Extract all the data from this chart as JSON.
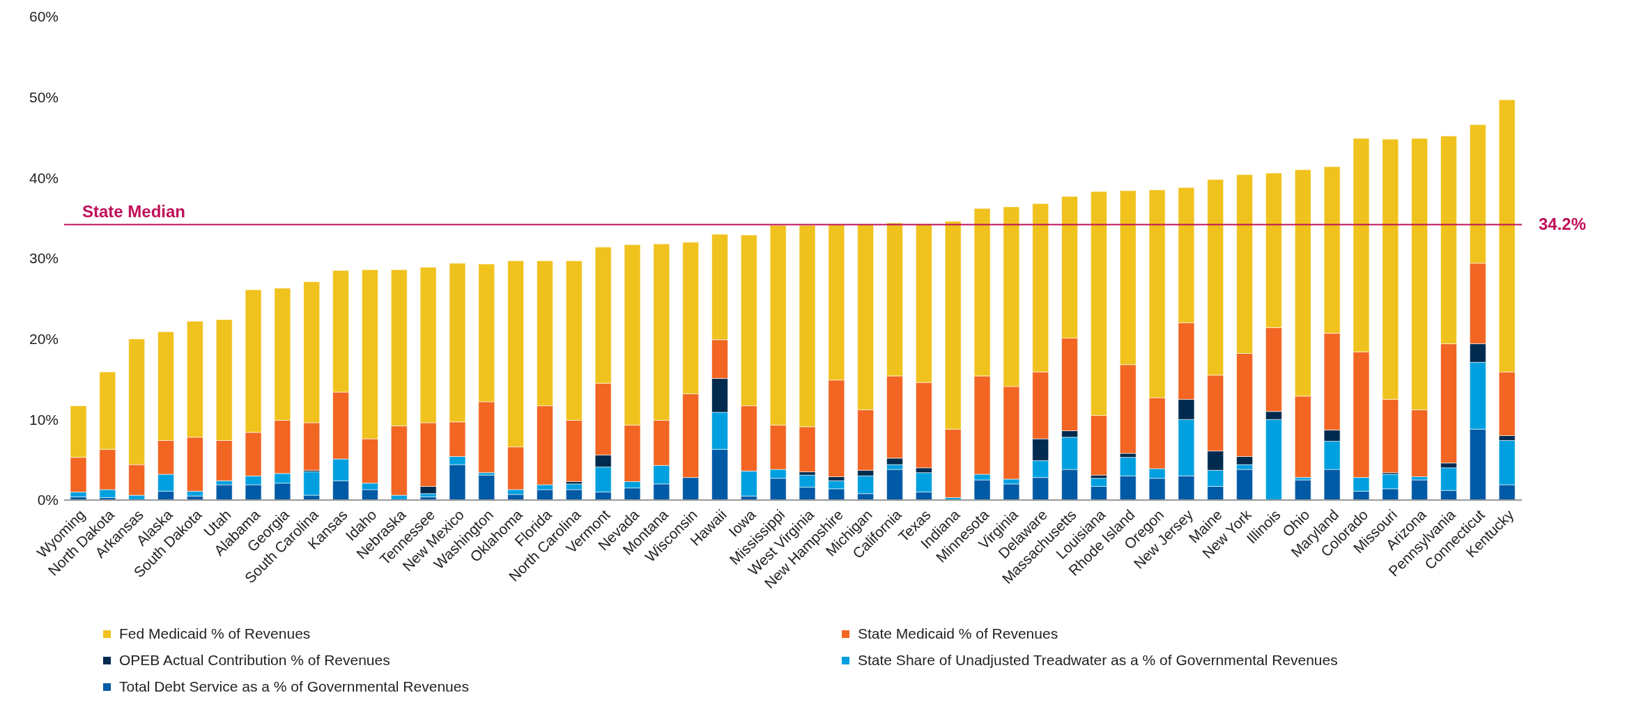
{
  "chart_data": {
    "type": "bar",
    "stacked": true,
    "legend": "bottom",
    "categories": [
      "Wyoming",
      "North Dakota",
      "Arkansas",
      "Alaska",
      "South Dakota",
      "Utah",
      "Alabama",
      "Georgia",
      "South Carolina",
      "Kansas",
      "Idaho",
      "Nebraska",
      "Tennessee",
      "New Mexico",
      "Washington",
      "Oklahoma",
      "Florida",
      "North Carolina",
      "Vermont",
      "Nevada",
      "Montana",
      "Wisconsin",
      "Hawaii",
      "Iowa",
      "Mississippi",
      "West Virginia",
      "New Hampshire",
      "Michigan",
      "California",
      "Texas",
      "Indiana",
      "Minnesota",
      "Virginia",
      "Delaware",
      "Massachusetts",
      "Louisiana",
      "Rhode Island",
      "Oregon",
      "New Jersey",
      "Maine",
      "New York",
      "Illinois",
      "Ohio",
      "Maryland",
      "Colorado",
      "Missouri",
      "Arizona",
      "Pennsylvania",
      "Connecticut",
      "Kentucky"
    ],
    "series": [
      {
        "name": "Total Debt Service as a % of Governmental Revenues",
        "color": "#005aa5",
        "values": [
          0.4,
          0.3,
          0,
          1.1,
          0.5,
          1.9,
          1.9,
          2.1,
          0.6,
          2.4,
          1.3,
          0,
          0.4,
          4.4,
          3.1,
          0.7,
          1.3,
          1.3,
          1.0,
          1.5,
          2.0,
          2.8,
          6.3,
          0.5,
          2.7,
          1.6,
          1.4,
          0.8,
          3.8,
          1.0,
          0,
          2.5,
          2.0,
          2.8,
          3.8,
          1.7,
          3.0,
          2.7,
          3.0,
          1.7,
          3.8,
          0,
          2.5,
          3.8,
          1.1,
          1.4,
          2.5,
          1.2,
          8.8,
          1.9
        ]
      },
      {
        "name": "State Share of Unadjusted Treadwater as a % of Governmental Revenues",
        "color": "#00a0e0",
        "values": [
          0.6,
          1.0,
          0.6,
          2.1,
          0.6,
          0.5,
          1.1,
          1.2,
          2.9,
          2.7,
          0.8,
          0.6,
          0.4,
          1.0,
          0.3,
          0.6,
          0.6,
          0.7,
          3.1,
          0.8,
          2.3,
          0,
          4.6,
          3.1,
          1.1,
          1.5,
          1.0,
          2.2,
          0.6,
          2.4,
          0.3,
          0.7,
          0.6,
          2.1,
          4.0,
          1.0,
          2.3,
          1.2,
          7.0,
          2.0,
          0.6,
          10.0,
          0.3,
          3.5,
          1.7,
          1.8,
          0.4,
          2.8,
          8.3,
          5.5
        ]
      },
      {
        "name": "OPEB Actual Contribution % of Revenues",
        "color": "#002b4f",
        "values": [
          0,
          0,
          0,
          0,
          0,
          0,
          0,
          0,
          0.2,
          0,
          0,
          0,
          0.9,
          0,
          0,
          0,
          0,
          0.3,
          1.5,
          0,
          0,
          0,
          4.2,
          0,
          0,
          0.4,
          0.5,
          0.7,
          0.8,
          0.6,
          0,
          0,
          0,
          2.7,
          0.8,
          0.4,
          0.5,
          0,
          2.5,
          2.4,
          1.0,
          1.0,
          0,
          1.4,
          0,
          0.2,
          0,
          0.6,
          2.3,
          0.6
        ]
      },
      {
        "name": "State Medicaid % of Revenues",
        "color": "#f26522",
        "values": [
          4.3,
          5.0,
          3.8,
          4.2,
          6.7,
          5.0,
          5.4,
          6.6,
          5.9,
          8.3,
          5.5,
          8.6,
          7.9,
          4.3,
          8.8,
          5.3,
          9.8,
          7.6,
          8.9,
          7.0,
          5.6,
          10.4,
          4.8,
          8.1,
          5.5,
          5.6,
          12.0,
          7.5,
          10.2,
          10.6,
          8.5,
          12.2,
          11.5,
          8.3,
          11.5,
          7.4,
          11.0,
          8.8,
          9.5,
          9.4,
          12.8,
          10.4,
          10.1,
          12.0,
          15.6,
          9.1,
          8.3,
          14.8,
          10.0,
          7.9
        ]
      },
      {
        "name": "Fed Medicaid % of Revenues",
        "color": "#f0c21e",
        "values": [
          6.4,
          9.6,
          15.6,
          13.5,
          14.4,
          15.0,
          17.7,
          16.4,
          17.5,
          15.1,
          21.0,
          19.4,
          19.3,
          19.7,
          17.1,
          23.1,
          18.0,
          19.8,
          16.9,
          22.4,
          21.9,
          18.8,
          13.1,
          21.2,
          24.8,
          25.0,
          19.3,
          23.0,
          19.0,
          19.7,
          25.8,
          20.8,
          22.3,
          20.9,
          17.6,
          27.8,
          21.6,
          25.8,
          16.8,
          24.3,
          22.2,
          19.2,
          28.1,
          20.7,
          26.5,
          32.3,
          33.7,
          25.8,
          17.2,
          33.8
        ]
      }
    ],
    "ylim": [
      0,
      60
    ],
    "yticks": [
      {
        "value": 0,
        "label": "0%"
      },
      {
        "value": 10,
        "label": "10%"
      },
      {
        "value": 20,
        "label": "20%"
      },
      {
        "value": 30,
        "label": "30%"
      },
      {
        "value": 40,
        "label": "40%"
      },
      {
        "value": 50,
        "label": "50%"
      },
      {
        "value": 60,
        "label": "60%"
      }
    ],
    "ref_lines": [
      {
        "axis": "y",
        "value": 34.2,
        "label": "State Median",
        "color": "#c0105a"
      }
    ],
    "annotations": [
      "34.2%"
    ]
  }
}
